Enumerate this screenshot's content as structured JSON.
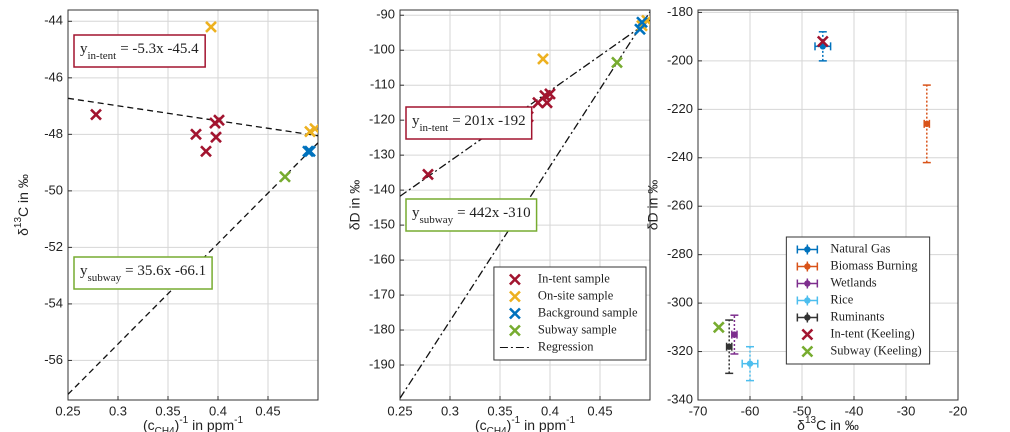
{
  "chart_data": [
    {
      "type": "scatter",
      "xlabel": [
        {
          "text": "(c"
        },
        {
          "text": "CH4",
          "shift": "sub"
        },
        {
          "text": ")"
        },
        {
          "text": "-1",
          "shift": "super"
        },
        {
          "text": " in ppm"
        },
        {
          "text": "-1",
          "shift": "super"
        }
      ],
      "ylabel": [
        {
          "text": "δ"
        },
        {
          "text": "13",
          "shift": "super"
        },
        {
          "text": "C in ‰"
        }
      ],
      "xlim": [
        0.25,
        0.5
      ],
      "xticks": [
        0.25,
        0.3,
        0.35,
        0.4,
        0.45
      ],
      "ylim": [
        -57.4,
        -43.6
      ],
      "yticks": [
        -44,
        -46,
        -48,
        -50,
        -52,
        -54,
        -56
      ],
      "grid": true,
      "series": [
        {
          "color": "#a2142f",
          "marker": "x",
          "x": [
            0.278,
            0.378,
            0.388,
            0.397,
            0.398,
            0.401
          ],
          "values": [
            -47.3,
            -48.0,
            -48.6,
            -47.6,
            -48.1,
            -47.5
          ]
        },
        {
          "color": "#edb120",
          "marker": "x",
          "x": [
            0.393,
            0.492,
            0.497
          ],
          "values": [
            -44.2,
            -47.9,
            -47.8
          ]
        },
        {
          "color": "#0072bd",
          "marker": "x",
          "x": [
            0.49,
            0.492
          ],
          "values": [
            -48.6,
            -48.6
          ]
        },
        {
          "color": "#77ac30",
          "marker": "x",
          "x": [
            0.467
          ],
          "values": [
            -49.5
          ]
        }
      ],
      "regressions": [
        {
          "slope": -5.3,
          "intercept": -45.4,
          "linestyle": "--",
          "box_color": "#a2142f",
          "label": {
            "base": "y",
            "sub": "in-tent",
            "text": "= -5.3x -45.4"
          }
        },
        {
          "slope": 35.6,
          "intercept": -66.1,
          "linestyle": "--",
          "box_color": "#77ac30",
          "label": {
            "base": "y",
            "sub": "subway",
            "text": "= 35.6x -66.1"
          }
        }
      ]
    },
    {
      "type": "scatter",
      "xlabel": [
        {
          "text": "(c"
        },
        {
          "text": "CH4",
          "shift": "sub"
        },
        {
          "text": ")"
        },
        {
          "text": "-1",
          "shift": "super"
        },
        {
          "text": " in ppm"
        },
        {
          "text": "-1",
          "shift": "super"
        }
      ],
      "ylabel": "δD in ‰",
      "xlim": [
        0.25,
        0.5
      ],
      "xticks": [
        0.25,
        0.3,
        0.35,
        0.4,
        0.45
      ],
      "ylim": [
        -200,
        -88.5
      ],
      "yticks": [
        -90,
        -100,
        -110,
        -120,
        -130,
        -140,
        -150,
        -160,
        -170,
        -180,
        -190
      ],
      "grid": true,
      "legend": "lower right",
      "series": [
        {
          "name": "In-tent sample",
          "color": "#a2142f",
          "marker": "x",
          "x": [
            0.278,
            0.378,
            0.388,
            0.395,
            0.397,
            0.4
          ],
          "values": [
            -135.5,
            -119,
            -115,
            -113,
            -115,
            -112.5
          ]
        },
        {
          "name": "On-site sample",
          "color": "#edb120",
          "marker": "x",
          "x": [
            0.393,
            0.492,
            0.497
          ],
          "values": [
            -102.5,
            -93,
            -91.5
          ]
        },
        {
          "name": "Background sample",
          "color": "#0072bd",
          "marker": "x",
          "x": [
            0.49,
            0.492
          ],
          "values": [
            -94,
            -92
          ]
        },
        {
          "name": "Subway sample",
          "color": "#77ac30",
          "marker": "x",
          "x": [
            0.467
          ],
          "values": [
            -103.5
          ]
        }
      ],
      "regression_name": "Regression",
      "regressions": [
        {
          "slope": 201,
          "intercept": -192,
          "linestyle": "-.",
          "box_color": "#a2142f",
          "label": {
            "base": "y",
            "sub": "in-tent",
            "text": "= 201x -192"
          }
        },
        {
          "slope": 442,
          "intercept": -310,
          "linestyle": "-.",
          "box_color": "#77ac30",
          "label": {
            "base": "y",
            "sub": "subway",
            "text": "= 442x -310"
          }
        }
      ]
    },
    {
      "type": "errorbar",
      "xlabel": [
        {
          "text": "δ"
        },
        {
          "text": "13",
          "shift": "super"
        },
        {
          "text": "C in ‰"
        }
      ],
      "ylabel": "δD in ‰",
      "xlim": [
        -70,
        -20
      ],
      "xticks": [
        -70,
        -60,
        -50,
        -40,
        -30,
        -20
      ],
      "ylim": [
        -340,
        -179
      ],
      "yticks": [
        -180,
        -200,
        -220,
        -240,
        -260,
        -280,
        -300,
        -320,
        -340
      ],
      "grid": true,
      "legend": "lower center",
      "series": [
        {
          "name": "Natural Gas",
          "color": "#0072bd",
          "marker": "o",
          "x": [
            -46
          ],
          "values": [
            -194
          ],
          "xerr": [
            1.5
          ],
          "yerr": [
            6
          ]
        },
        {
          "name": "Biomass Burning",
          "color": "#d95319",
          "marker": "o",
          "x": [
            -26
          ],
          "values": [
            -226
          ],
          "xerr": [
            0.5
          ],
          "yerr": [
            16
          ]
        },
        {
          "name": "Wetlands",
          "color": "#7e2f8e",
          "marker": "o",
          "x": [
            -63
          ],
          "values": [
            -313
          ],
          "xerr": [
            0.5
          ],
          "yerr": [
            8
          ]
        },
        {
          "name": "Rice",
          "color": "#4dbeee",
          "marker": "o",
          "x": [
            -60
          ],
          "values": [
            -325
          ],
          "xerr": [
            1.5
          ],
          "yerr": [
            7
          ]
        },
        {
          "name": "Ruminants",
          "color": "#333333",
          "marker": "o",
          "x": [
            -64
          ],
          "values": [
            -318
          ],
          "xerr": [
            0.5
          ],
          "yerr": [
            11
          ]
        },
        {
          "name": "In-tent (Keeling)",
          "color": "#a2142f",
          "marker": "x",
          "x": [
            -46
          ],
          "values": [
            -192
          ]
        },
        {
          "name": "Subway (Keeling)",
          "color": "#77ac30",
          "marker": "x",
          "x": [
            -66
          ],
          "values": [
            -310
          ]
        }
      ]
    }
  ]
}
